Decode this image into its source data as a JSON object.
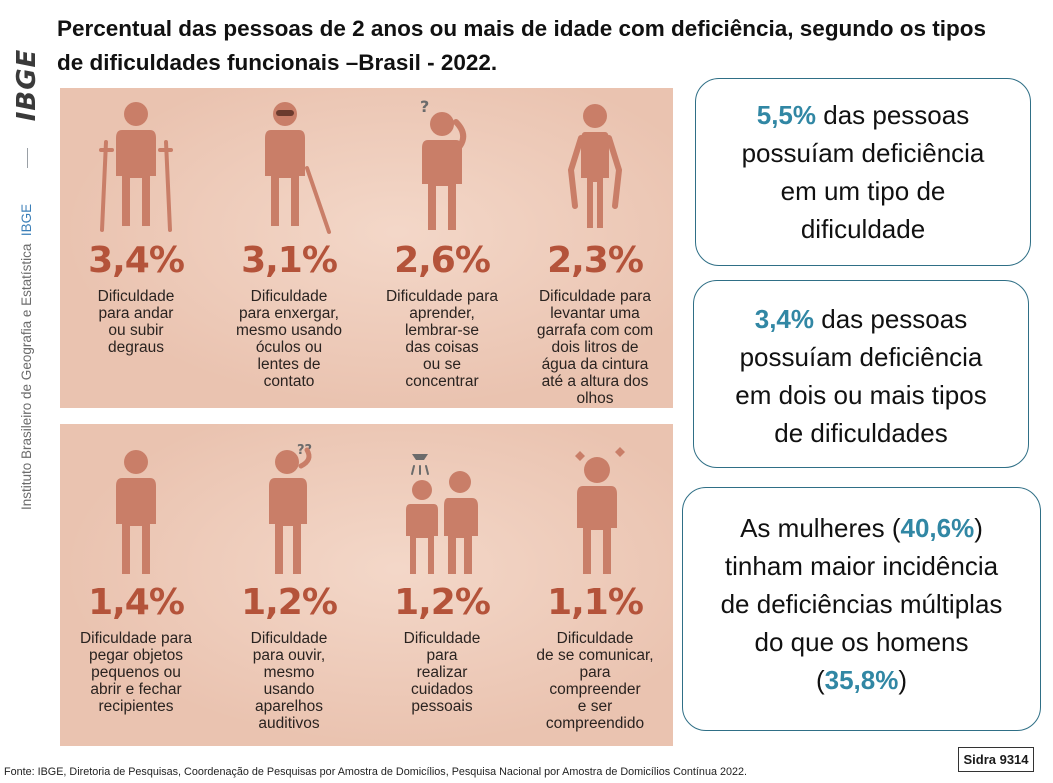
{
  "title": "Percentual das pessoas de 2 anos ou mais de idade com deficiência, segundo os tipos de dificuldades funcionais –Brasil - 2022.",
  "sidebar": {
    "logo": "IBGE",
    "caption": "Instituto Brasileiro de Geografia e Estatística",
    "caption_abbr": "IBGE"
  },
  "colors": {
    "panel": "#eac3b0",
    "figure": "#c97e68",
    "percent": "#b4533a",
    "highlight": "#3187a4",
    "card_border": "#2f6f86"
  },
  "difficulties_top": [
    {
      "icon": "crutches-person-icon",
      "percent": "3,4%",
      "label": "Dificuldade\npara andar\nou subir\ndegraus"
    },
    {
      "icon": "blind-person-cane-icon",
      "percent": "3,1%",
      "label": "Dificuldade\npara enxergar,\nmesmo usando\nóculos ou\nlentes de\ncontato"
    },
    {
      "icon": "confused-person-icon",
      "percent": "2,6%",
      "label": "Dificuldade para\naprender,\nlembrar-se\ndas coisas\nou se\nconcentrar"
    },
    {
      "icon": "person-lifting-icon",
      "percent": "2,3%",
      "label": "Dificuldade para\nlevantar uma\ngarrafa com com\ndois litros de\nágua da cintura\naté a altura dos\nolhos"
    }
  ],
  "difficulties_bottom": [
    {
      "icon": "person-hands-icon",
      "percent": "1,4%",
      "label": "Dificuldade para\npegar objetos\npequenos ou\nabrir e fechar\nrecipientes"
    },
    {
      "icon": "hearing-person-icon",
      "percent": "1,2%",
      "label": "Dificuldade\npara ouvir,\nmesmo\nusando\naparelhos\nauditivos"
    },
    {
      "icon": "shower-assist-icon",
      "percent": "1,2%",
      "label": "Dificuldade\npara\nrealizar\ncuidados\npessoais"
    },
    {
      "icon": "communication-person-icon",
      "percent": "1,1%",
      "label": "Dificuldade\nde se comunicar,\npara\ncompreender\ne ser\ncompreendido"
    }
  ],
  "cards": {
    "one": {
      "highlight": "5,5%",
      "text": " das pessoas\npossuíam deficiência\nem um tipo de\ndificuldade"
    },
    "two": {
      "highlight": "3,4%",
      "text": " das pessoas\npossuíam deficiência\nem dois ou mais tipos\nde dificuldades"
    },
    "three": {
      "before": "As mulheres (",
      "highlight_women": "40,6%",
      "middle": ")\ntinham maior incidência\nde deficiências múltiplas\ndo que os homens\n(",
      "highlight_men": "35,8%",
      "after": ")"
    }
  },
  "sidra": "Sidra 9314",
  "source": "Fonte: IBGE, Diretoria de Pesquisas, Coordenação de Pesquisas por Amostra de Domicílios, Pesquisa Nacional por Amostra de Domicílios Contínua 2022."
}
